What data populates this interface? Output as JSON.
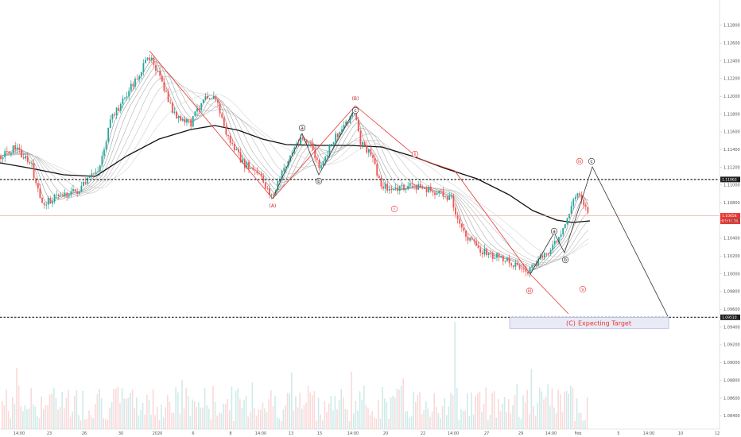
{
  "chart_data": {
    "type": "candlestick",
    "y_axis": {
      "ticks": [
        "1.12800",
        "1.12600",
        "1.12400",
        "1.12200",
        "1.12000",
        "1.11800",
        "1.11600",
        "1.11400",
        "1.11200",
        "1.11000",
        "1.10800",
        "1.10600",
        "1.10400",
        "1.10200",
        "1.10000",
        "1.09800",
        "1.09600",
        "1.09400",
        "1.09200",
        "1.09000",
        "1.08800",
        "1.08600",
        "1.08400"
      ],
      "range": [
        1.0834,
        1.1296
      ]
    },
    "x_axis": {
      "ticks": [
        "14:00",
        "23",
        "26",
        "30",
        "2020",
        "6",
        "8",
        "14:00",
        "13",
        "15",
        "14:00",
        "20",
        "22",
        "14:00",
        "27",
        "29",
        "14:00",
        "Feb",
        "5",
        "14:00",
        "10",
        "12"
      ]
    },
    "price_lines": [
      {
        "value": 1.11063,
        "label": "1.11063",
        "color": "#222222"
      },
      {
        "value": 1.0951,
        "label": "1.09510",
        "color": "#222222"
      },
      {
        "value": 1.10654,
        "label": "1.10654",
        "sublabel": "02:09:56",
        "color": "#e53935"
      }
    ],
    "wave_labels": [
      {
        "text": "(A)",
        "color": "#c62828"
      },
      {
        "text": "(B)",
        "color": "#c62828"
      },
      {
        "text": "a",
        "color": "#222222"
      },
      {
        "text": "b",
        "color": "#222222"
      },
      {
        "text": "c",
        "color": "#222222"
      },
      {
        "text": "i",
        "color": "#e53935"
      },
      {
        "text": "ii",
        "color": "#e53935"
      },
      {
        "text": "iii",
        "color": "#e53935"
      },
      {
        "text": "iv",
        "color": "#e53935"
      },
      {
        "text": "v",
        "color": "#e53935"
      },
      {
        "text": "a",
        "color": "#222222"
      },
      {
        "text": "b",
        "color": "#222222"
      },
      {
        "text": "c",
        "color": "#222222"
      }
    ],
    "target_box": {
      "label_wave": "(C)",
      "label_text": "Expecting Target",
      "top": 1.0951,
      "bottom": 1.0942
    },
    "colors": {
      "up": "#26a69a",
      "down": "#ef5350",
      "wave_line": "#e53935",
      "projection": "#333333",
      "slow_ma": "#111111"
    }
  }
}
